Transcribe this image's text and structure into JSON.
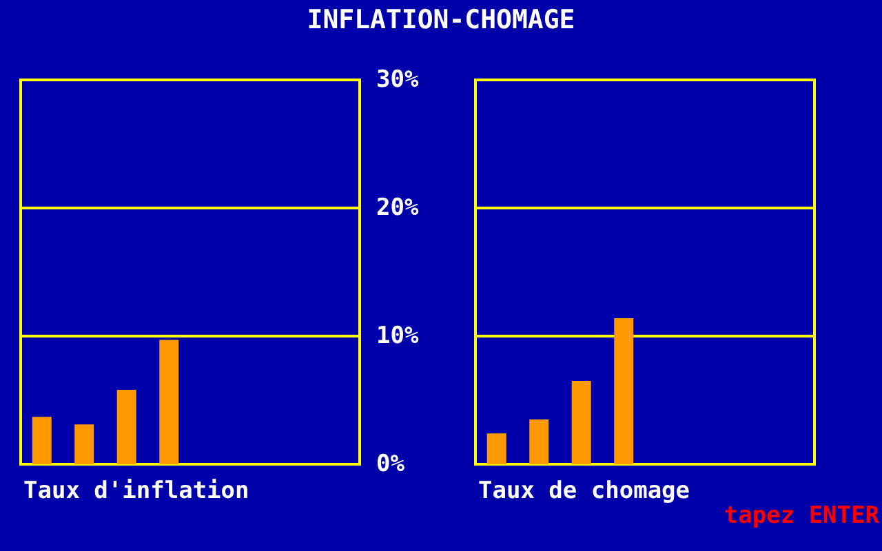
{
  "chart_data": [
    {
      "type": "bar",
      "title": "INFLATION-CHOMAGE",
      "xlabel": "Taux d'inflation",
      "categories": [
        null,
        null,
        null,
        null,
        null,
        null,
        null,
        null
      ],
      "values": [
        3.7,
        3.1,
        5.8,
        9.7,
        null,
        null,
        null,
        null
      ],
      "color": "#ff9900",
      "ylim": [
        0,
        30
      ],
      "yticks": [
        {
          "value": 0,
          "label": "0%"
        },
        {
          "value": 10,
          "label": "10%"
        },
        {
          "value": 20,
          "label": "20%"
        },
        {
          "value": 30,
          "label": "30%"
        }
      ],
      "grid": "y",
      "tick_labels": "y"
    },
    {
      "type": "bar",
      "xlabel": "Taux de chomage",
      "categories": [
        null,
        null,
        null,
        null,
        null,
        null,
        null,
        null
      ],
      "values": [
        2.4,
        3.5,
        6.5,
        11.4,
        null,
        null,
        null,
        null
      ],
      "color": "#ff9900",
      "ylim": [
        0,
        30
      ],
      "yticks": [
        {
          "value": 0,
          "label": null
        },
        {
          "value": 10,
          "label": null
        },
        {
          "value": 20,
          "label": null
        },
        {
          "value": 30,
          "label": null
        }
      ],
      "grid": "y",
      "tick_labels": false,
      "annotations": [
        "tapez ENTER"
      ]
    }
  ]
}
